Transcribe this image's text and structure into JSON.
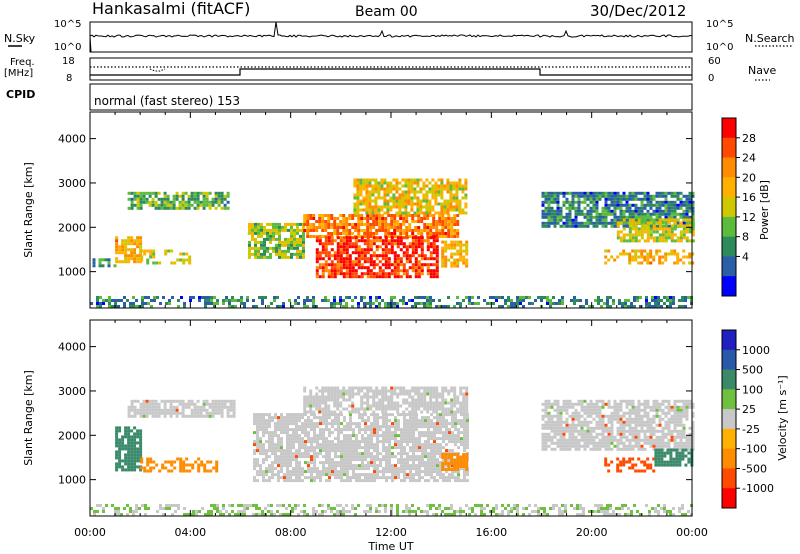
{
  "header": {
    "station": "Hankasalmi (fitACF)",
    "beam": "Beam 00",
    "date": "30/Dec/2012"
  },
  "nsky_panel": {
    "left_label": "N.Sky",
    "right_label": "N.Search",
    "tick_hi": "10^5",
    "tick_lo": "10^0"
  },
  "freq_panel": {
    "left_label_top": "Freq.",
    "left_label_unit": "[MHz]",
    "right_label": "Nave",
    "left_tick_hi": "18",
    "left_tick_lo": "8",
    "right_tick_hi": "60",
    "right_tick_lo": "0"
  },
  "cpid_panel": {
    "label": "CPID",
    "text": "normal (fast stereo) 153"
  },
  "power_colorbar": {
    "title": "Power [dB]",
    "ticks": [
      "28",
      "24",
      "20",
      "16",
      "12",
      "8",
      "4"
    ],
    "colors": [
      "#ff0000",
      "#ff4a00",
      "#ff8c00",
      "#ffb000",
      "#cfc800",
      "#5cba3c",
      "#2d8a5a",
      "#2a5fa8",
      "#0000ff"
    ]
  },
  "velocity_colorbar": {
    "title": "Velocity [m s⁻¹]",
    "ticks": [
      "1000",
      "500",
      "100",
      "25",
      "-25",
      "-100",
      "-500",
      "-1000"
    ],
    "colors": [
      "#2020c0",
      "#2858a8",
      "#3a8a6a",
      "#70c040",
      "#c8c8c8",
      "#ffb000",
      "#ff8c00",
      "#ff4a00",
      "#ff0000"
    ]
  },
  "axes": {
    "y_label": "Slant Range [km]",
    "y_ticks": [
      "4000",
      "3000",
      "2000",
      "1000"
    ],
    "x_label": "Time UT",
    "x_ticks": [
      "00:00",
      "04:00",
      "08:00",
      "12:00",
      "16:00",
      "20:00",
      "00:00"
    ]
  },
  "chart_data": [
    {
      "type": "heatmap",
      "name": "Power [dB]",
      "x_unit": "hours UT",
      "y_unit": "km",
      "xlim": [
        0,
        24
      ],
      "ylim": [
        180,
        4600
      ],
      "clim": [
        0,
        32
      ],
      "regions": [
        {
          "x": [
            1.0,
            2.0
          ],
          "y": [
            1200,
            1800
          ],
          "value": 20
        },
        {
          "x": [
            1.5,
            5.5
          ],
          "y": [
            2400,
            2800
          ],
          "value": 12
        },
        {
          "x": [
            0.1,
            1.0
          ],
          "y": [
            1100,
            1300
          ],
          "value": 8
        },
        {
          "x": [
            2.0,
            4.0
          ],
          "y": [
            1200,
            1500
          ],
          "value": 16
        },
        {
          "x": [
            6.3,
            8.5
          ],
          "y": [
            1300,
            2100
          ],
          "value": 14
        },
        {
          "x": [
            8.5,
            14.7
          ],
          "y": [
            1800,
            2300
          ],
          "value": 24
        },
        {
          "x": [
            9.0,
            13.8
          ],
          "y": [
            900,
            1800
          ],
          "value": 28
        },
        {
          "x": [
            10.5,
            15.0
          ],
          "y": [
            2300,
            3100
          ],
          "value": 18
        },
        {
          "x": [
            14.0,
            15.0
          ],
          "y": [
            1100,
            1700
          ],
          "value": 20
        },
        {
          "x": [
            18.0,
            24.0
          ],
          "y": [
            2000,
            2800
          ],
          "value": 8
        },
        {
          "x": [
            21.0,
            24.0
          ],
          "y": [
            1700,
            2200
          ],
          "value": 16
        },
        {
          "x": [
            20.5,
            24.0
          ],
          "y": [
            1200,
            1500
          ],
          "value": 20
        },
        {
          "x": [
            0.0,
            24.0
          ],
          "y": [
            180,
            450
          ],
          "value": 8
        }
      ]
    },
    {
      "type": "heatmap",
      "name": "Velocity [m s-1]",
      "x_unit": "hours UT",
      "y_unit": "km",
      "xlim": [
        0,
        24
      ],
      "ylim": [
        180,
        4600
      ],
      "clim": [
        -1000,
        1000
      ],
      "regions": [
        {
          "x": [
            1.0,
            2.0
          ],
          "y": [
            1200,
            2200
          ],
          "value": 100
        },
        {
          "x": [
            2.0,
            5.0
          ],
          "y": [
            1200,
            1500
          ],
          "value": -100
        },
        {
          "x": [
            1.5,
            5.8
          ],
          "y": [
            2400,
            2800
          ],
          "value": 0
        },
        {
          "x": [
            6.5,
            15.0
          ],
          "y": [
            1000,
            2500
          ],
          "value": 0
        },
        {
          "x": [
            8.5,
            15.0
          ],
          "y": [
            2500,
            3100
          ],
          "value": 0
        },
        {
          "x": [
            14.0,
            15.0
          ],
          "y": [
            1200,
            1600
          ],
          "value": -100
        },
        {
          "x": [
            18.0,
            24.0
          ],
          "y": [
            1700,
            2800
          ],
          "value": 0
        },
        {
          "x": [
            20.5,
            22.5
          ],
          "y": [
            1200,
            1500
          ],
          "value": -500
        },
        {
          "x": [
            22.5,
            24.0
          ],
          "y": [
            1300,
            1700
          ],
          "value": 100
        },
        {
          "x": [
            0.0,
            24.0
          ],
          "y": [
            180,
            450
          ],
          "value": 25
        }
      ]
    }
  ]
}
